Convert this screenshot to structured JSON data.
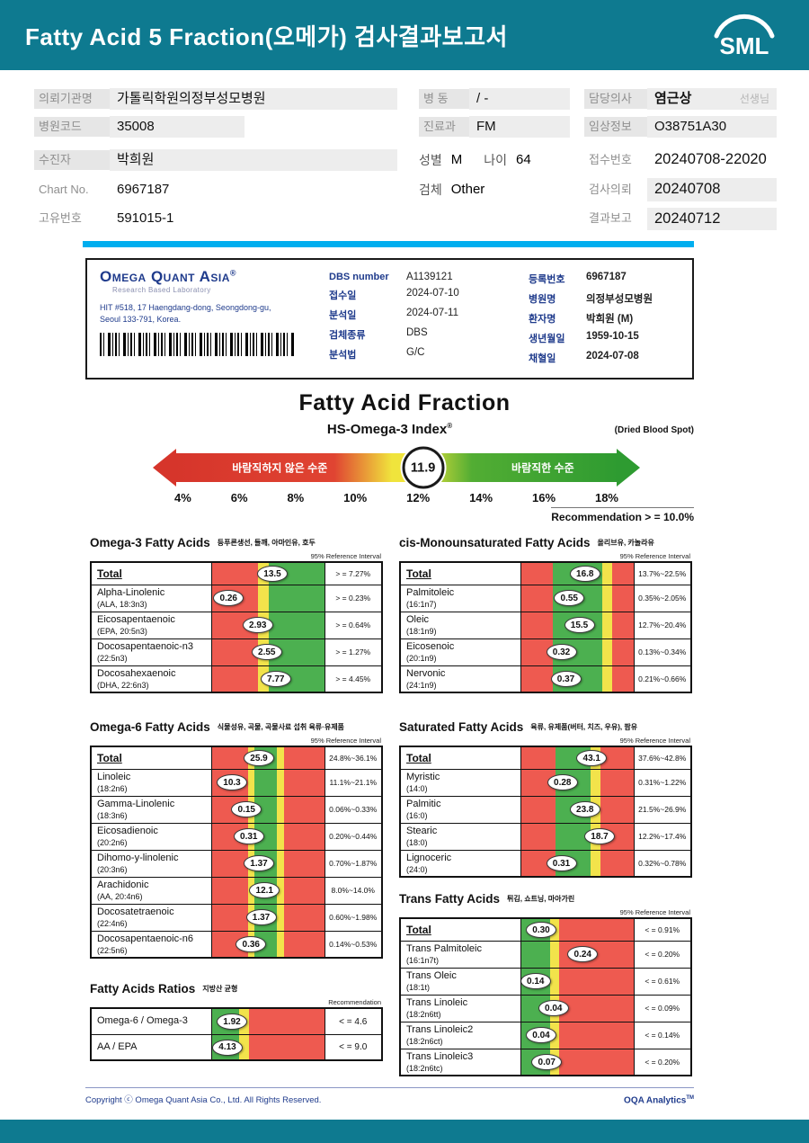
{
  "colors": {
    "teal": "#0e7a90",
    "divider_blue": "#00aeef",
    "navy": "#1f3b8c",
    "red": "#ee5a50",
    "yellow": "#f2e34b",
    "green": "#4cb050"
  },
  "header": {
    "title": "Fatty Acid 5 Fraction(오메가) 검사결과보고서",
    "logo_text": "SML"
  },
  "info": {
    "org_label": "의뢰기관명",
    "org_value": "가톨릭학원의정부성모병원",
    "code_label": "병원코드",
    "code_value": "35008",
    "ward_label": "병 동",
    "ward_value": "/ -",
    "dept_label": "진료과",
    "dept_value": "FM",
    "doctor_label": "담당의사",
    "doctor_value": "염근상",
    "doctor_suffix": "선생님",
    "clinical_label": "임상정보",
    "clinical_value": "O38751A30",
    "patient_label": "수진자",
    "patient_value": "박희원",
    "chart_label": "Chart No.",
    "chart_value": "6967187",
    "uid_label": "고유번호",
    "uid_value": "591015-1",
    "sex_label": "성별",
    "sex_value": "M",
    "age_label": "나이",
    "age_value": "64",
    "specimen_label": "검체",
    "specimen_value": "Other",
    "receipt_label": "접수번호",
    "receipt_value": "20240708-22020",
    "request_label": "검사의뢰",
    "request_value": "20240708",
    "report_label": "결과보고",
    "report_value": "20240712"
  },
  "lab": {
    "name": "Omega Quant Asia",
    "reg": "®",
    "subtitle": "Research Based Laboratory",
    "address1": "HIT #518, 17 Haengdang-dong, Seongdong-gu,",
    "address2": "Seoul 133-791, Korea.",
    "left_fields": [
      {
        "label": "DBS number",
        "value": "A1139121"
      },
      {
        "label": "접수일",
        "value": "2024-07-10"
      },
      {
        "label": "분석일",
        "value": "2024-07-11"
      },
      {
        "label": "검체종류",
        "value": "DBS"
      },
      {
        "label": "분석법",
        "value": "G/C"
      }
    ],
    "right_fields": [
      {
        "label": "등록번호",
        "value": "6967187"
      },
      {
        "label": "병원명",
        "value": "의정부성모병원"
      },
      {
        "label": "환자명",
        "value": "박희원 (M)"
      },
      {
        "label": "생년월일",
        "value": "1959-10-15"
      },
      {
        "label": "채혈일",
        "value": "2024-07-08"
      }
    ]
  },
  "fraction": {
    "title": "Fatty Acid Fraction",
    "index_title": "HS-Omega-3 Index",
    "index_reg": "®",
    "dbs_note": "(Dried Blood Spot)",
    "gauge": {
      "left_label": "바람직하지 않은 수준",
      "right_label": "바람직한 수준",
      "value": "11.9",
      "value_pos": 56,
      "ticks": [
        "4%",
        "6%",
        "8%",
        "10%",
        "12%",
        "14%",
        "16%",
        "18%"
      ],
      "recommendation": "Recommendation  > =  10.0%"
    }
  },
  "tables": {
    "omega3": {
      "title": "Omega-3 Fatty Acids",
      "subtitle": "등푸른생선, 들깨, 아마인유, 호두",
      "ref_header": "95% Reference Interval",
      "bands": [
        [
          "red",
          41
        ],
        [
          "yellow",
          10
        ],
        [
          "green",
          49
        ]
      ],
      "rows": [
        {
          "name": "Total",
          "value": "13.5",
          "ref": "> = 7.27%",
          "pos": 54,
          "total": true
        },
        {
          "name": "Alpha-Linolenic",
          "sub": "(ALA, 18:3n3)",
          "value": "0.26",
          "ref": "> = 0.23%",
          "pos": 15
        },
        {
          "name": "Eicosapentaenoic",
          "sub": "(EPA, 20:5n3)",
          "value": "2.93",
          "ref": "> = 0.64%",
          "pos": 41
        },
        {
          "name": "Docosapentaenoic-n3",
          "sub": "(22:5n3)",
          "value": "2.55",
          "ref": "> = 1.27%",
          "pos": 49
        },
        {
          "name": "Docosahexaenoic",
          "sub": "(DHA, 22:6n3)",
          "value": "7.77",
          "ref": "> = 4.45%",
          "pos": 57
        }
      ]
    },
    "mono": {
      "title": "cis-Monounsaturated Fatty Acids",
      "subtitle": "올리브유, 카놀라유",
      "ref_header": "95% Reference Interval",
      "bands": [
        [
          "red",
          28
        ],
        [
          "green",
          44
        ],
        [
          "yellow",
          9
        ],
        [
          "red",
          19
        ]
      ],
      "rows": [
        {
          "name": "Total",
          "value": "16.8",
          "ref": "13.7%~22.5%",
          "pos": 57,
          "total": true
        },
        {
          "name": "Palmitoleic",
          "sub": "(16:1n7)",
          "value": "0.55",
          "ref": "0.35%~2.05%",
          "pos": 43
        },
        {
          "name": "Oleic",
          "sub": "(18:1n9)",
          "value": "15.5",
          "ref": "12.7%~20.4%",
          "pos": 52
        },
        {
          "name": "Eicosenoic",
          "sub": "(20:1n9)",
          "value": "0.32",
          "ref": "0.13%~0.34%",
          "pos": 36
        },
        {
          "name": "Nervonic",
          "sub": "(24:1n9)",
          "value": "0.37",
          "ref": "0.21%~0.66%",
          "pos": 40
        }
      ]
    },
    "omega6": {
      "title": "Omega-6 Fatty Acids",
      "subtitle": "식물성유, 곡물, 곡물사료 섭취 육류·유제품",
      "ref_header": "95% Reference Interval",
      "bands": [
        [
          "red",
          32
        ],
        [
          "yellow",
          6
        ],
        [
          "green",
          20
        ],
        [
          "yellow",
          6
        ],
        [
          "red",
          36
        ]
      ],
      "rows": [
        {
          "name": "Total",
          "value": "25.9",
          "ref": "24.8%~36.1%",
          "pos": 42,
          "total": true
        },
        {
          "name": "Linoleic",
          "sub": "(18:2n6)",
          "value": "10.3",
          "ref": "11.1%~21.1%",
          "pos": 18
        },
        {
          "name": "Gamma-Linolenic",
          "sub": "(18:3n6)",
          "value": "0.15",
          "ref": "0.06%~0.33%",
          "pos": 31
        },
        {
          "name": "Eicosadienoic",
          "sub": "(20:2n6)",
          "value": "0.31",
          "ref": "0.20%~0.44%",
          "pos": 33
        },
        {
          "name": "Dihomo-y-linolenic",
          "sub": "(20:3n6)",
          "value": "1.37",
          "ref": "0.70%~1.87%",
          "pos": 42
        },
        {
          "name": "Arachidonic",
          "sub": "(AA, 20:4n6)",
          "value": "12.1",
          "ref": "8.0%~14.0%",
          "pos": 47
        },
        {
          "name": "Docosatetraenoic",
          "sub": "(22:4n6)",
          "value": "1.37",
          "ref": "0.60%~1.98%",
          "pos": 44
        },
        {
          "name": "Docosapentaenoic-n6",
          "sub": "(22:5n6)",
          "value": "0.36",
          "ref": "0.14%~0.53%",
          "pos": 35
        }
      ]
    },
    "saturated": {
      "title": "Saturated Fatty Acids",
      "subtitle": "육류, 유제품(버터, 치즈, 우유), 팜유",
      "ref_header": "95% Reference Interval",
      "bands": [
        [
          "red",
          31
        ],
        [
          "green",
          31
        ],
        [
          "yellow",
          9
        ],
        [
          "red",
          29
        ]
      ],
      "rows": [
        {
          "name": "Total",
          "value": "43.1",
          "ref": "37.6%~42.8%",
          "pos": 63,
          "total": true
        },
        {
          "name": "Myristic",
          "sub": "(14:0)",
          "value": "0.28",
          "ref": "0.31%~1.22%",
          "pos": 37
        },
        {
          "name": "Palmitic",
          "sub": "(16:0)",
          "value": "23.8",
          "ref": "21.5%~26.9%",
          "pos": 57
        },
        {
          "name": "Stearic",
          "sub": "(18:0)",
          "value": "18.7",
          "ref": "12.2%~17.4%",
          "pos": 70
        },
        {
          "name": "Lignoceric",
          "sub": "(24:0)",
          "value": "0.31",
          "ref": "0.32%~0.78%",
          "pos": 36
        }
      ]
    },
    "trans": {
      "title": "Trans Fatty Acids",
      "subtitle": "튀김, 쇼트닝, 마아가린",
      "ref_header": "95% Reference Interval",
      "bands": [
        [
          "green",
          26
        ],
        [
          "yellow",
          8
        ],
        [
          "red",
          66
        ]
      ],
      "rows": [
        {
          "name": "Total",
          "value": "0.30",
          "ref": "< = 0.91%",
          "pos": 18,
          "total": true
        },
        {
          "name": "Trans Palmitoleic",
          "sub": "(16:1n7t)",
          "value": "0.24",
          "ref": "< = 0.20%",
          "pos": 55
        },
        {
          "name": "Trans Oleic",
          "sub": "(18:1t)",
          "value": "0.14",
          "ref": "< = 0.61%",
          "pos": 13
        },
        {
          "name": "Trans Linoleic",
          "sub": "(18:2n6tt)",
          "value": "0.04",
          "ref": "< = 0.09%",
          "pos": 29
        },
        {
          "name": "Trans Linoleic2",
          "sub": "(18:2n6ct)",
          "value": "0.04",
          "ref": "< = 0.14%",
          "pos": 18
        },
        {
          "name": "Trans Linoleic3",
          "sub": "(18:2n6tc)",
          "value": "0.07",
          "ref": "< = 0.20%",
          "pos": 23
        }
      ]
    },
    "ratios": {
      "title": "Fatty Acids Ratios",
      "subtitle": "지방산 균형",
      "ref_header": "Recommendation",
      "bands": [
        [
          "green",
          24
        ],
        [
          "yellow",
          9
        ],
        [
          "red",
          67
        ]
      ],
      "rows": [
        {
          "name": "Omega-6 / Omega-3",
          "value": "1.92",
          "ref": "< = 4.6",
          "pos": 18
        },
        {
          "name": "AA / EPA",
          "value": "4.13",
          "ref": "< = 9.0",
          "pos": 14
        }
      ]
    }
  },
  "footer": {
    "copyright": "Copyright ⓒ Omega Quant Asia Co., Ltd.  All Rights Reserved.",
    "brand": "OQA Analytics",
    "brand_tm": "TM"
  },
  "chart_data": [
    {
      "type": "gauge",
      "title": "HS-Omega-3 Index (Dried Blood Spot)",
      "value": 11.9,
      "axis_range": [
        4,
        18
      ],
      "ticks_percent": [
        4,
        6,
        8,
        10,
        12,
        14,
        16,
        18
      ],
      "recommendation": ">= 10.0%",
      "zone_labels": {
        "red": "바람직하지 않은 수준",
        "green": "바람직한 수준"
      }
    },
    {
      "type": "bar",
      "title": "Omega-3 Fatty Acids",
      "categories": [
        "Total",
        "Alpha-Linolenic (ALA, 18:3n3)",
        "Eicosapentaenoic (EPA, 20:5n3)",
        "Docosapentaenoic-n3 (22:5n3)",
        "Docosahexaenoic (DHA, 22:6n3)"
      ],
      "values": [
        13.5,
        0.26,
        2.93,
        2.55,
        7.77
      ],
      "reference": [
        ">= 7.27%",
        ">= 0.23%",
        ">= 0.64%",
        ">= 1.27%",
        ">= 4.45%"
      ]
    },
    {
      "type": "bar",
      "title": "cis-Monounsaturated Fatty Acids",
      "categories": [
        "Total",
        "Palmitoleic (16:1n7)",
        "Oleic (18:1n9)",
        "Eicosenoic (20:1n9)",
        "Nervonic (24:1n9)"
      ],
      "values": [
        16.8,
        0.55,
        15.5,
        0.32,
        0.37
      ],
      "reference": [
        "13.7%~22.5%",
        "0.35%~2.05%",
        "12.7%~20.4%",
        "0.13%~0.34%",
        "0.21%~0.66%"
      ]
    },
    {
      "type": "bar",
      "title": "Omega-6 Fatty Acids",
      "categories": [
        "Total",
        "Linoleic (18:2n6)",
        "Gamma-Linolenic (18:3n6)",
        "Eicosadienoic (20:2n6)",
        "Dihomo-y-linolenic (20:3n6)",
        "Arachidonic (AA, 20:4n6)",
        "Docosatetraenoic (22:4n6)",
        "Docosapentaenoic-n6 (22:5n6)"
      ],
      "values": [
        25.9,
        10.3,
        0.15,
        0.31,
        1.37,
        12.1,
        1.37,
        0.36
      ],
      "reference": [
        "24.8%~36.1%",
        "11.1%~21.1%",
        "0.06%~0.33%",
        "0.20%~0.44%",
        "0.70%~1.87%",
        "8.0%~14.0%",
        "0.60%~1.98%",
        "0.14%~0.53%"
      ]
    },
    {
      "type": "bar",
      "title": "Saturated Fatty Acids",
      "categories": [
        "Total",
        "Myristic (14:0)",
        "Palmitic (16:0)",
        "Stearic (18:0)",
        "Lignoceric (24:0)"
      ],
      "values": [
        43.1,
        0.28,
        23.8,
        18.7,
        0.31
      ],
      "reference": [
        "37.6%~42.8%",
        "0.31%~1.22%",
        "21.5%~26.9%",
        "12.2%~17.4%",
        "0.32%~0.78%"
      ]
    },
    {
      "type": "bar",
      "title": "Trans Fatty Acids",
      "categories": [
        "Total",
        "Trans Palmitoleic (16:1n7t)",
        "Trans Oleic (18:1t)",
        "Trans Linoleic (18:2n6tt)",
        "Trans Linoleic2 (18:2n6ct)",
        "Trans Linoleic3 (18:2n6tc)"
      ],
      "values": [
        0.3,
        0.24,
        0.14,
        0.04,
        0.04,
        0.07
      ],
      "reference": [
        "<= 0.91%",
        "<= 0.20%",
        "<= 0.61%",
        "<= 0.09%",
        "<= 0.14%",
        "<= 0.20%"
      ]
    },
    {
      "type": "bar",
      "title": "Fatty Acids Ratios",
      "categories": [
        "Omega-6 / Omega-3",
        "AA / EPA"
      ],
      "values": [
        1.92,
        4.13
      ],
      "reference": [
        "<= 4.6",
        "<= 9.0"
      ]
    }
  ]
}
